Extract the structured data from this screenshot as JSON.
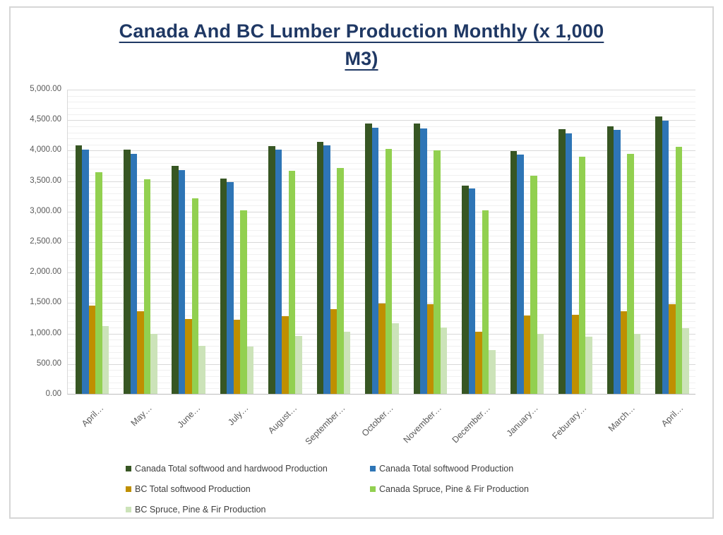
{
  "header": {
    "line1": "Canada And BC Lumber Production Monthly (x 1,000",
    "line2": "M3)"
  },
  "colors": {
    "title": "#1f3864",
    "axis_text": "#595959",
    "major_grid": "#d9d9d9",
    "minor_grid": "#f0f0f0",
    "frame_border": "#d6d6d6"
  },
  "chart_data": {
    "type": "bar",
    "title": "Canada And BC Lumber Production Monthly (x 1,000 M3)",
    "xlabel": "",
    "ylabel": "",
    "ylim": [
      0,
      5000
    ],
    "major_step": 500,
    "minor_step": 100,
    "grid": "horizontal, major and minor, on",
    "legend_position": "bottom",
    "categories": [
      "April…",
      "May…",
      "June…",
      "July…",
      "August…",
      "September…",
      "October…",
      "November…",
      "December…",
      "January…",
      "Feburary…",
      "March…",
      "April…"
    ],
    "yticks": [
      {
        "value": 0,
        "label": "0.00"
      },
      {
        "value": 500,
        "label": "500.00"
      },
      {
        "value": 1000,
        "label": "1,000.00"
      },
      {
        "value": 1500,
        "label": "1,500.00"
      },
      {
        "value": 2000,
        "label": "2,000.00"
      },
      {
        "value": 2500,
        "label": "2,500.00"
      },
      {
        "value": 3000,
        "label": "3,000.00"
      },
      {
        "value": 3500,
        "label": "3,500.00"
      },
      {
        "value": 4000,
        "label": "4,000.00"
      },
      {
        "value": 4500,
        "label": "4,500.00"
      },
      {
        "value": 5000,
        "label": "5,000.00"
      }
    ],
    "series": [
      {
        "name": "Canada Total softwood and hardwood Production",
        "color": "#375623",
        "values": [
          4070,
          4010,
          3740,
          3530,
          4060,
          4130,
          4430,
          4430,
          3420,
          3980,
          4340,
          4390,
          4550
        ]
      },
      {
        "name": "Canada Total softwood Production",
        "color": "#2e75b6",
        "values": [
          4000,
          3930,
          3670,
          3470,
          4000,
          4070,
          4360,
          4350,
          3370,
          3920,
          4270,
          4330,
          4480
        ]
      },
      {
        "name": "BC Total softwood Production",
        "color": "#bf8f00",
        "values": [
          1450,
          1350,
          1230,
          1220,
          1270,
          1390,
          1480,
          1470,
          1020,
          1290,
          1300,
          1350,
          1470
        ]
      },
      {
        "name": "Canada Spruce, Pine & Fir Production",
        "color": "#92d050",
        "values": [
          3630,
          3520,
          3210,
          3010,
          3660,
          3700,
          4020,
          3990,
          3010,
          3580,
          3890,
          3930,
          4050
        ]
      },
      {
        "name": "BC Spruce, Pine & Fir Production",
        "color": "#cce3b9",
        "values": [
          1110,
          980,
          790,
          780,
          950,
          1020,
          1160,
          1090,
          720,
          980,
          940,
          990,
          1080
        ]
      }
    ]
  }
}
